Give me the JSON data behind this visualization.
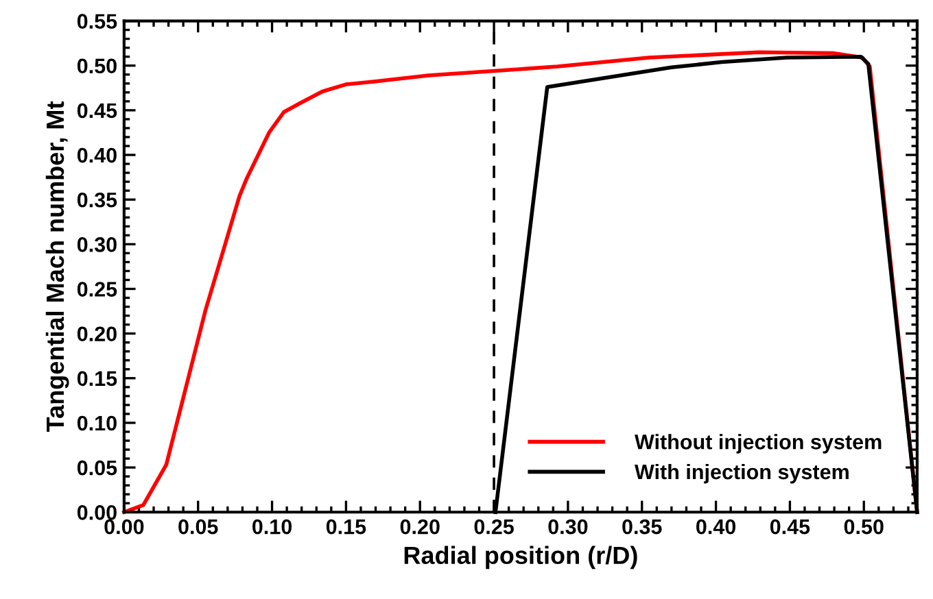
{
  "chart_data": {
    "type": "line",
    "xlabel": "Radial position (r/D)",
    "ylabel": "Tangential Mach number, Mt",
    "xlim": [
      0,
      0.536
    ],
    "ylim": [
      0,
      0.55
    ],
    "xticks": [
      {
        "value": 0,
        "label": "0.00"
      },
      0.05,
      {
        "value": 0.1,
        "label": "0.10"
      },
      0.15,
      {
        "value": 0.2,
        "label": "0.20"
      },
      0.25,
      {
        "value": 0.3,
        "label": "0.30"
      },
      0.35,
      {
        "value": 0.4,
        "label": "0.40"
      },
      0.45,
      {
        "value": 0.5,
        "label": "0.50"
      }
    ],
    "yticks": [
      {
        "value": 0,
        "label": "0.00"
      },
      0.05,
      {
        "value": 0.1,
        "label": "0.10"
      },
      0.15,
      {
        "value": 0.2,
        "label": "0.20"
      },
      0.25,
      {
        "value": 0.3,
        "label": "0.30"
      },
      0.35,
      {
        "value": 0.4,
        "label": "0.40"
      },
      0.45,
      {
        "value": 0.5,
        "label": "0.50"
      },
      0.55
    ],
    "grid": false,
    "legend": "bottom right",
    "marker": "none",
    "line_style": "solid",
    "ref_lines": [
      {
        "axis": "x",
        "value": 0.25,
        "color": "#000000",
        "line_style": "dashed"
      }
    ],
    "series": [
      {
        "name": "Without injection system",
        "color": "#ff0000",
        "x": [
          0,
          0.013,
          0.0285,
          0.0394,
          0.055,
          0.066,
          0.078,
          0.083,
          0.098,
          0.108,
          0.119,
          0.134,
          0.15,
          0.168,
          0.206,
          0.25,
          0.293,
          0.355,
          0.429,
          0.479,
          0.499,
          0.504,
          0.536
        ],
        "values": [
          0,
          0.008,
          0.053,
          0.124,
          0.226,
          0.287,
          0.354,
          0.374,
          0.425,
          0.448,
          0.458,
          0.471,
          0.479,
          0.482,
          0.489,
          0.494,
          0.499,
          0.509,
          0.515,
          0.514,
          0.509,
          0.499,
          0
        ]
      },
      {
        "name": "With injection system",
        "color": "#000000",
        "x": [
          0.251,
          0.286,
          0.324,
          0.37,
          0.404,
          0.448,
          0.498,
          0.503,
          0.536
        ],
        "values": [
          0,
          0.476,
          0.486,
          0.498,
          0.504,
          0.509,
          0.51,
          0.502,
          0
        ]
      }
    ]
  }
}
